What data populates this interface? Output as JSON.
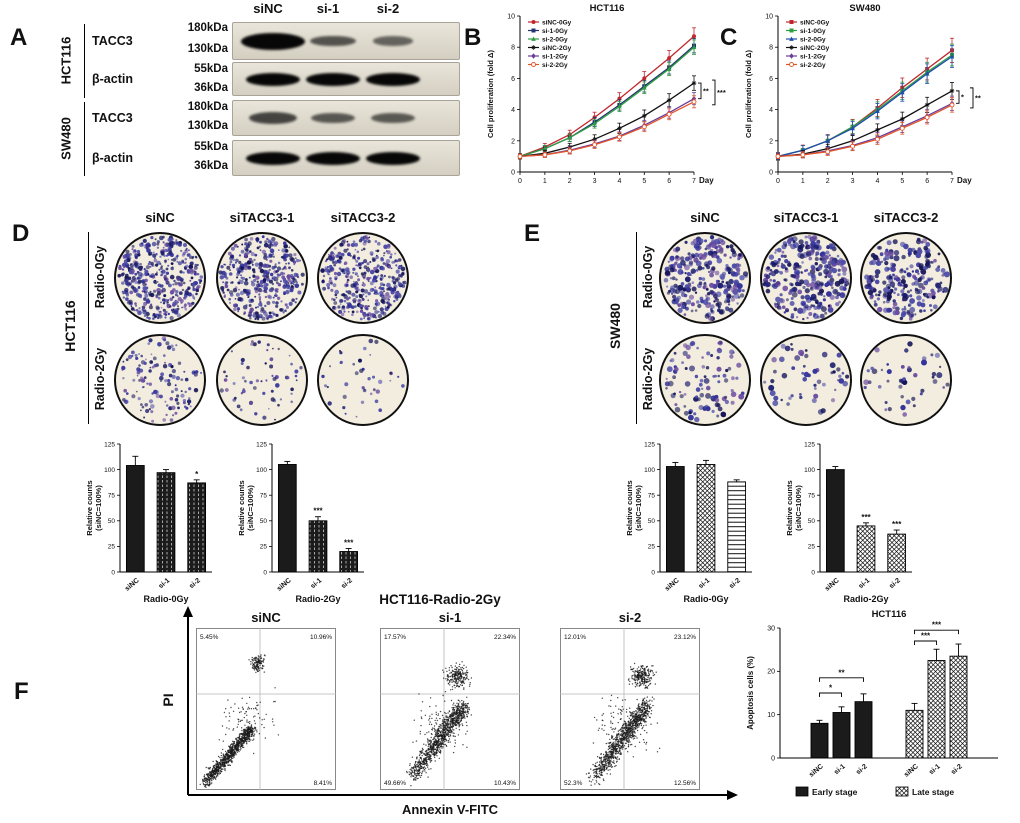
{
  "panels": {
    "A": {
      "label": "A",
      "col_headers": [
        "siNC",
        "si-1",
        "si-2"
      ],
      "groups": [
        {
          "cell": "HCT116",
          "rows": [
            {
              "protein": "TACC3",
              "mw": [
                "180kDa",
                "130kDa"
              ],
              "bands": [
                1.0,
                0.45,
                0.32
              ]
            },
            {
              "protein": "β-actin",
              "mw": [
                "55kDa",
                "36kDa"
              ],
              "bands": [
                1,
                1,
                1
              ]
            }
          ]
        },
        {
          "cell": "SW480",
          "rows": [
            {
              "protein": "TACC3",
              "mw": [
                "180kDa",
                "130kDa"
              ],
              "bands": [
                0.55,
                0.42,
                0.4
              ]
            },
            {
              "protein": "β-actin",
              "mw": [
                "55kDa",
                "36kDa"
              ],
              "bands": [
                1,
                1,
                1
              ]
            }
          ]
        }
      ]
    },
    "B": {
      "label": "B"
    },
    "C": {
      "label": "C"
    },
    "D": {
      "label": "D",
      "cell": "HCT116",
      "col_headers": [
        "siNC",
        "siTACC3-1",
        "siTACC3-2"
      ],
      "row_labels": [
        "Radio-0Gy",
        "Radio-2Gy"
      ],
      "colony_density": [
        [
          450,
          400,
          380
        ],
        [
          130,
          65,
          40
        ]
      ]
    },
    "E": {
      "label": "E",
      "cell": "SW480",
      "col_headers": [
        "siNC",
        "siTACC3-1",
        "siTACC3-2"
      ],
      "row_labels": [
        "Radio-0Gy",
        "Radio-2Gy"
      ],
      "colony_density": [
        [
          280,
          300,
          230
        ],
        [
          100,
          55,
          45
        ]
      ]
    },
    "F": {
      "label": "F",
      "title": "HCT116-Radio-2Gy",
      "xaxis_label": "Annexin V-FITC",
      "yaxis_label": "PI",
      "plots": [
        {
          "name": "siNC",
          "quadrants": {
            "tl": "5.45%",
            "tr": "10.96%",
            "bl": "",
            "br": "8.41%"
          }
        },
        {
          "name": "si-1",
          "quadrants": {
            "tl": "17.57%",
            "tr": "22.34%",
            "bl": "49.66%",
            "br": "10.43%"
          }
        },
        {
          "name": "si-2",
          "quadrants": {
            "tl": "12.01%",
            "tr": "23.12%",
            "bl": "52.3%",
            "br": "12.56%"
          }
        }
      ]
    }
  },
  "chart_data": [
    {
      "id": "B",
      "type": "line",
      "title": "HCT116",
      "xlabel": "Day",
      "ylabel": "Cell proliferation (fold Δ)",
      "x": [
        0,
        1,
        2,
        3,
        4,
        5,
        6,
        7
      ],
      "ylim": [
        0,
        10
      ],
      "yticks": [
        0,
        2,
        4,
        6,
        8,
        10
      ],
      "series": [
        {
          "name": "siNC-0Gy",
          "color": "#c0272d",
          "marker": "c",
          "err": 0.35,
          "values": [
            1,
            1.6,
            2.4,
            3.5,
            4.7,
            6.0,
            7.3,
            8.7
          ]
        },
        {
          "name": "si-1-0Gy",
          "color": "#24356f",
          "marker": "s",
          "err": 0.3,
          "values": [
            1,
            1.5,
            2.2,
            3.2,
            4.3,
            5.5,
            6.7,
            8.1
          ]
        },
        {
          "name": "si-2-0Gy",
          "color": "#2f9e41",
          "marker": "t",
          "err": 0.3,
          "values": [
            1,
            1.5,
            2.2,
            3.1,
            4.2,
            5.4,
            6.6,
            8.0
          ]
        },
        {
          "name": "siNC-2Gy",
          "color": "#111111",
          "marker": "st",
          "err": 0.3,
          "values": [
            1,
            1.2,
            1.6,
            2.1,
            2.8,
            3.6,
            4.6,
            5.7
          ]
        },
        {
          "name": "si-1-2Gy",
          "color": "#6a3d9a",
          "marker": "d",
          "err": 0.25,
          "values": [
            1,
            1.1,
            1.4,
            1.8,
            2.3,
            3.0,
            3.8,
            4.7
          ]
        },
        {
          "name": "si-2-2Gy",
          "color": "#e2552a",
          "marker": "o",
          "err": 0.25,
          "values": [
            1,
            1.1,
            1.35,
            1.75,
            2.25,
            2.9,
            3.7,
            4.5
          ]
        }
      ],
      "sig": [
        "**",
        "***"
      ],
      "legend_position": "top-left",
      "grid": false
    },
    {
      "id": "C",
      "type": "line",
      "title": "SW480",
      "xlabel": "Day",
      "ylabel": "Cell proliferation (fold Δ)",
      "x": [
        0,
        1,
        2,
        3,
        4,
        5,
        6,
        7
      ],
      "ylim": [
        0,
        10
      ],
      "yticks": [
        0,
        2,
        4,
        6,
        8,
        10
      ],
      "series": [
        {
          "name": "siNC-0Gy",
          "color": "#c0272d",
          "marker": "s",
          "err": 0.5,
          "values": [
            1,
            1.4,
            2.0,
            2.9,
            4.1,
            5.4,
            6.6,
            7.8
          ]
        },
        {
          "name": "si-1-0Gy",
          "color": "#2f9e41",
          "marker": "s",
          "err": 0.45,
          "values": [
            1,
            1.4,
            2.0,
            2.9,
            4.0,
            5.2,
            6.4,
            7.5
          ]
        },
        {
          "name": "si-2-0Gy",
          "color": "#1f4db0",
          "marker": "t",
          "err": 0.45,
          "values": [
            1,
            1.4,
            2.0,
            2.8,
            3.9,
            5.1,
            6.3,
            7.4
          ]
        },
        {
          "name": "siNC-2Gy",
          "color": "#111111",
          "marker": "st",
          "err": 0.35,
          "values": [
            1,
            1.15,
            1.5,
            2.0,
            2.7,
            3.4,
            4.3,
            5.2
          ]
        },
        {
          "name": "si-1-2Gy",
          "color": "#6a3d9a",
          "marker": "d",
          "err": 0.3,
          "values": [
            1,
            1.1,
            1.35,
            1.7,
            2.2,
            2.9,
            3.6,
            4.4
          ]
        },
        {
          "name": "si-2-2Gy",
          "color": "#e2552a",
          "marker": "o",
          "err": 0.3,
          "values": [
            1,
            1.1,
            1.3,
            1.65,
            2.1,
            2.8,
            3.5,
            4.3
          ]
        }
      ],
      "sig": [
        "*",
        "**"
      ],
      "legend_position": "top-left",
      "grid": false
    },
    {
      "id": "D-0Gy",
      "type": "bar",
      "xlabel": "Radio-0Gy",
      "ylabel": [
        "Relative counts",
        "(siNC=100%)"
      ],
      "categories": [
        "siNC",
        "si-1",
        "si-2"
      ],
      "values": [
        104,
        97,
        87
      ],
      "errors": [
        9,
        3,
        3
      ],
      "sig": [
        "",
        "",
        "*"
      ],
      "ylim": [
        0,
        125
      ],
      "yticks": [
        0,
        25,
        50,
        75,
        100,
        125
      ],
      "patterns": [
        "solid",
        "vdash",
        "vdash"
      ]
    },
    {
      "id": "D-2Gy",
      "type": "bar",
      "xlabel": "Radio-2Gy",
      "ylabel": [
        "Relative counts",
        "(siNC=100%)"
      ],
      "categories": [
        "siNC",
        "si-1",
        "si-2"
      ],
      "values": [
        105,
        50,
        20
      ],
      "errors": [
        3,
        4,
        3
      ],
      "sig": [
        "",
        "***",
        "***"
      ],
      "ylim": [
        0,
        125
      ],
      "yticks": [
        0,
        25,
        50,
        75,
        100,
        125
      ],
      "patterns": [
        "solid",
        "vdash",
        "vdash"
      ]
    },
    {
      "id": "E-0Gy",
      "type": "bar",
      "xlabel": "Radio-0Gy",
      "ylabel": [
        "Relative counts",
        "(siNC=100%)"
      ],
      "categories": [
        "siNC",
        "si-1",
        "si-2"
      ],
      "values": [
        103,
        105,
        88
      ],
      "errors": [
        4,
        4,
        2
      ],
      "sig": [
        "",
        "",
        ""
      ],
      "ylim": [
        0,
        125
      ],
      "yticks": [
        0,
        25,
        50,
        75,
        100,
        125
      ],
      "patterns": [
        "solid",
        "cross",
        "hlines"
      ]
    },
    {
      "id": "E-2Gy",
      "type": "bar",
      "xlabel": "Radio-2Gy",
      "ylabel": [
        "Relative counts",
        "(siNC=100%)"
      ],
      "categories": [
        "siNC",
        "si-1",
        "si-2"
      ],
      "values": [
        100,
        45,
        37
      ],
      "errors": [
        3,
        3,
        4
      ],
      "sig": [
        "",
        "***",
        "***"
      ],
      "ylim": [
        0,
        125
      ],
      "yticks": [
        0,
        25,
        50,
        75,
        100,
        125
      ],
      "patterns": [
        "solid",
        "cross",
        "cross"
      ]
    },
    {
      "id": "F-apoptosis",
      "type": "bar",
      "title": "HCT116",
      "ylabel": "Apoptosis cells (%)",
      "ylim": [
        0,
        30
      ],
      "yticks": [
        0,
        10,
        20,
        30
      ],
      "categories": [
        "siNC",
        "si-1",
        "si-2"
      ],
      "series": [
        {
          "name": "Early stage",
          "pattern": "solid",
          "values": [
            8,
            10.5,
            13
          ],
          "errors": [
            0.7,
            1.3,
            1.8
          ]
        },
        {
          "name": "Late stage",
          "pattern": "cross",
          "values": [
            11,
            22.5,
            23.5
          ],
          "errors": [
            1.6,
            2.6,
            2.8
          ]
        }
      ],
      "sig": [
        {
          "series": 0,
          "from": 0,
          "to": 1,
          "label": "*",
          "h": 15
        },
        {
          "series": 0,
          "from": 0,
          "to": 2,
          "label": "**",
          "h": 18.5
        },
        {
          "series": 1,
          "from": 0,
          "to": 1,
          "label": "***",
          "h": 27
        },
        {
          "series": 1,
          "from": 0,
          "to": 2,
          "label": "***",
          "h": 29.5
        }
      ]
    }
  ]
}
